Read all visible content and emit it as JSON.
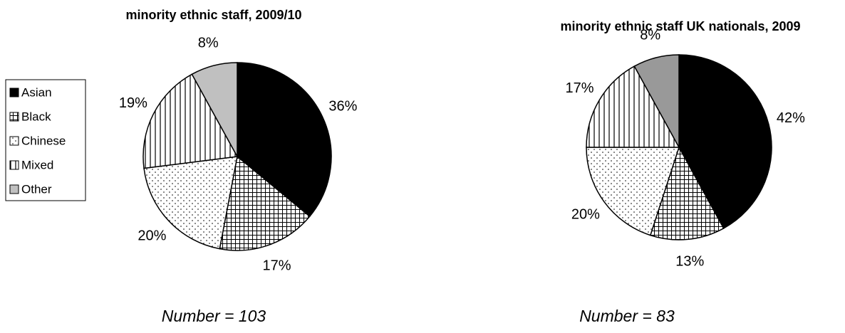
{
  "chart_data": [
    {
      "type": "pie",
      "title": "minority ethnic staff, 2009/10",
      "categories": [
        "Asian",
        "Black",
        "Chinese",
        "Mixed",
        "Other"
      ],
      "values": [
        36,
        17,
        20,
        19,
        8
      ],
      "value_labels": [
        "36%",
        "17%",
        "20%",
        "19%",
        "8%"
      ],
      "colors": [
        "#000000",
        "#000000",
        "#000000",
        "#000000",
        "#c0c0c0"
      ],
      "patterns": [
        "solid",
        "grid",
        "dots",
        "vlines",
        "solid"
      ],
      "legend": "left",
      "annotation": "Number = 103"
    },
    {
      "type": "pie",
      "title": "minority ethnic staff UK nationals, 2009",
      "values": [
        42,
        13,
        20,
        17,
        8
      ],
      "value_labels": [
        "42%",
        "13%",
        "20%",
        "17%",
        "8%"
      ],
      "colors": [
        "#000000",
        "#000000",
        "#000000",
        "#000000",
        "#999999"
      ],
      "patterns": [
        "solid",
        "grid",
        "dots",
        "vlines",
        "solid"
      ],
      "annotation": "Number = 83"
    }
  ]
}
